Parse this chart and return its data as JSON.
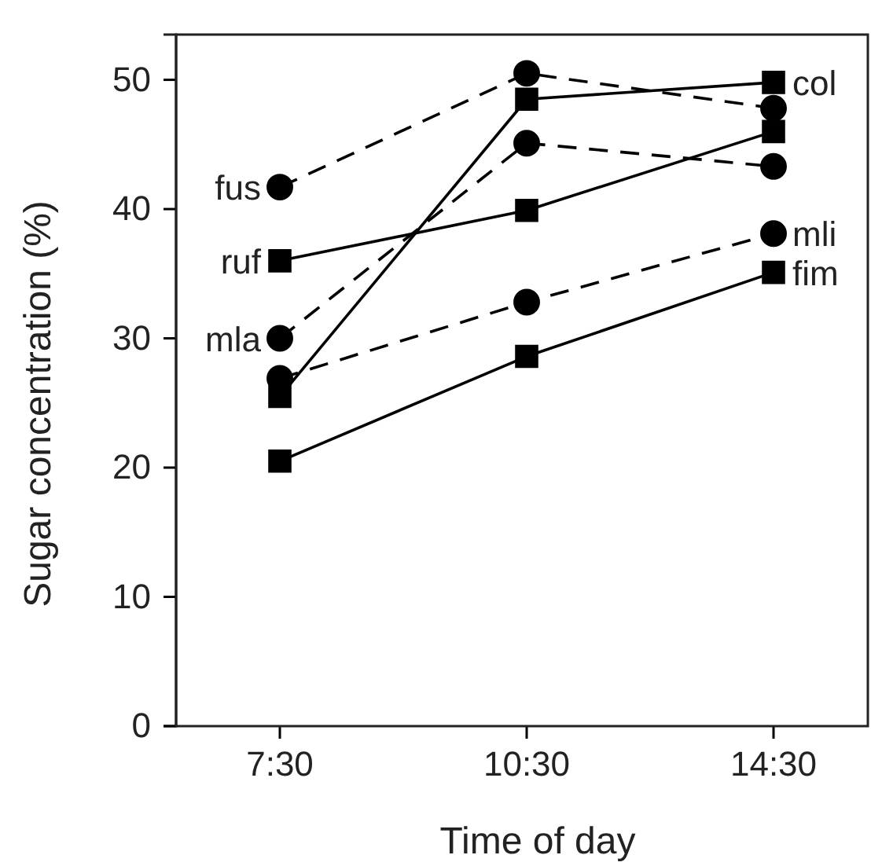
{
  "chart_data": {
    "type": "line",
    "xlabel": "Time of day",
    "ylabel": "Sugar concentration (%)",
    "categories": [
      "7:30",
      "10:30",
      "14:30"
    ],
    "ylim": [
      0,
      53.5
    ],
    "yticks": [
      0,
      10,
      20,
      30,
      40,
      50
    ],
    "grid": false,
    "series": [
      {
        "name": "fus",
        "color": "#000000",
        "marker": "circle",
        "line_style": "dashed",
        "values": [
          41.7,
          50.5,
          47.8
        ]
      },
      {
        "name": "ruf",
        "color": "#000000",
        "marker": "square",
        "line_style": "solid",
        "values": [
          36,
          39.9,
          46
        ]
      },
      {
        "name": "mla",
        "color": "#000000",
        "marker": "circle",
        "line_style": "dashed",
        "values": [
          30,
          45.1,
          43.3
        ]
      },
      {
        "name": "col",
        "color": "#000000",
        "marker": "square",
        "line_style": "solid",
        "values": [
          25.5,
          48.5,
          49.8
        ]
      },
      {
        "name": "mli",
        "color": "#000000",
        "marker": "circle",
        "line_style": "dashed",
        "values": [
          26.9,
          32.8,
          38.1
        ]
      },
      {
        "name": "fim",
        "color": "#000000",
        "marker": "square",
        "line_style": "solid",
        "values": [
          20.5,
          28.6,
          35.1
        ]
      }
    ]
  }
}
